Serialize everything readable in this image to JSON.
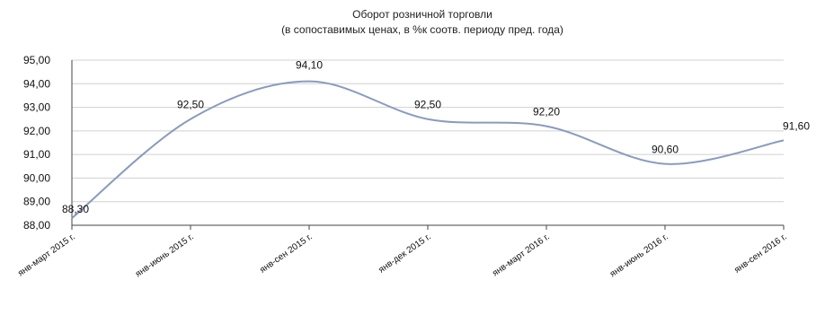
{
  "chart_data": {
    "type": "line",
    "smooth": true,
    "title": "Оборот розничной торговли",
    "subtitle": "(в сопоставимых ценах, в %к соотв. периоду пред. года)",
    "categories": [
      "янв-март 2015 г.",
      "янв-июнь 2015 г.",
      "янв-сен 2015 г.",
      "янв-дек 2015 г.",
      "янв-март 2016 г.",
      "янв-июнь 2016 г.",
      "янв-сен 2016 г."
    ],
    "series": [
      {
        "values": [
          88.3,
          92.5,
          94.1,
          92.5,
          92.2,
          90.6,
          91.6
        ]
      }
    ],
    "data_labels": [
      "88,30",
      "92,50",
      "94,10",
      "92,50",
      "92,20",
      "90,60",
      "91,60"
    ],
    "ylim": [
      88,
      95
    ],
    "yticks": [
      "88,00",
      "89,00",
      "90,00",
      "91,00",
      "92,00",
      "93,00",
      "94,00",
      "95,00"
    ],
    "grid": true,
    "legend": "none",
    "colors": {
      "line": "#8a9bbf",
      "grid": "#d0d0d0",
      "axis": "#444444"
    }
  }
}
